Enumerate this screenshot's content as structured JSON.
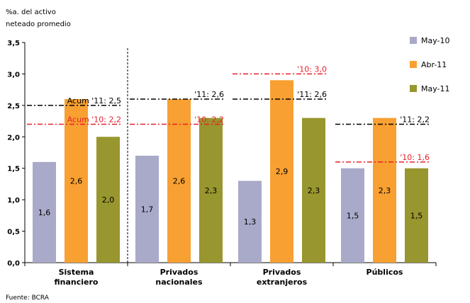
{
  "chart_data": {
    "type": "bar",
    "ylabel_lines": [
      "%a. del activo",
      "neteado promedio"
    ],
    "ylim": [
      0,
      3.5
    ],
    "yticks": [
      "0,0",
      "0,5",
      "1,0",
      "1,5",
      "2,0",
      "2,5",
      "3,0",
      "3,5"
    ],
    "categories": [
      [
        "Sistema",
        "financiero"
      ],
      [
        "Privados",
        "nacionales"
      ],
      [
        "Privados",
        "extranjeros"
      ],
      [
        "Públicos"
      ]
    ],
    "series": [
      {
        "name": "May-10",
        "color": "#a9a9c9",
        "values": [
          1.6,
          1.7,
          1.3,
          1.5
        ],
        "labels": [
          "1,6",
          "1,7",
          "1,3",
          "1,5"
        ]
      },
      {
        "name": "Abr-11",
        "color": "#f8a031",
        "values": [
          2.6,
          2.6,
          2.9,
          2.3
        ],
        "labels": [
          "2,6",
          "2,6",
          "2,9",
          "2,3"
        ]
      },
      {
        "name": "May-11",
        "color": "#98962e",
        "values": [
          2.0,
          2.3,
          2.3,
          1.5
        ],
        "labels": [
          "2,0",
          "2,3",
          "2,3",
          "1,5"
        ]
      }
    ],
    "reference_lines": [
      {
        "category": 0,
        "value": 2.5,
        "color": "#000000",
        "label": "Acum '11: 2,5"
      },
      {
        "category": 0,
        "value": 2.2,
        "color": "#e8202a",
        "label": "Acum '10: 2,2"
      },
      {
        "category": 1,
        "value": 2.6,
        "color": "#000000",
        "label": "'11: 2,6"
      },
      {
        "category": 1,
        "value": 2.2,
        "color": "#e8202a",
        "label": "'10: 2,2"
      },
      {
        "category": 2,
        "value": 3.0,
        "color": "#e8202a",
        "label": "'10: 3,0"
      },
      {
        "category": 2,
        "value": 2.6,
        "color": "#000000",
        "label": "'11: 2,6"
      },
      {
        "category": 3,
        "value": 2.2,
        "color": "#000000",
        "label": "'11: 2,2"
      },
      {
        "category": 3,
        "value": 1.6,
        "color": "#e8202a",
        "label": "'10: 1,6"
      }
    ],
    "source": "Fuente: BCRA"
  }
}
